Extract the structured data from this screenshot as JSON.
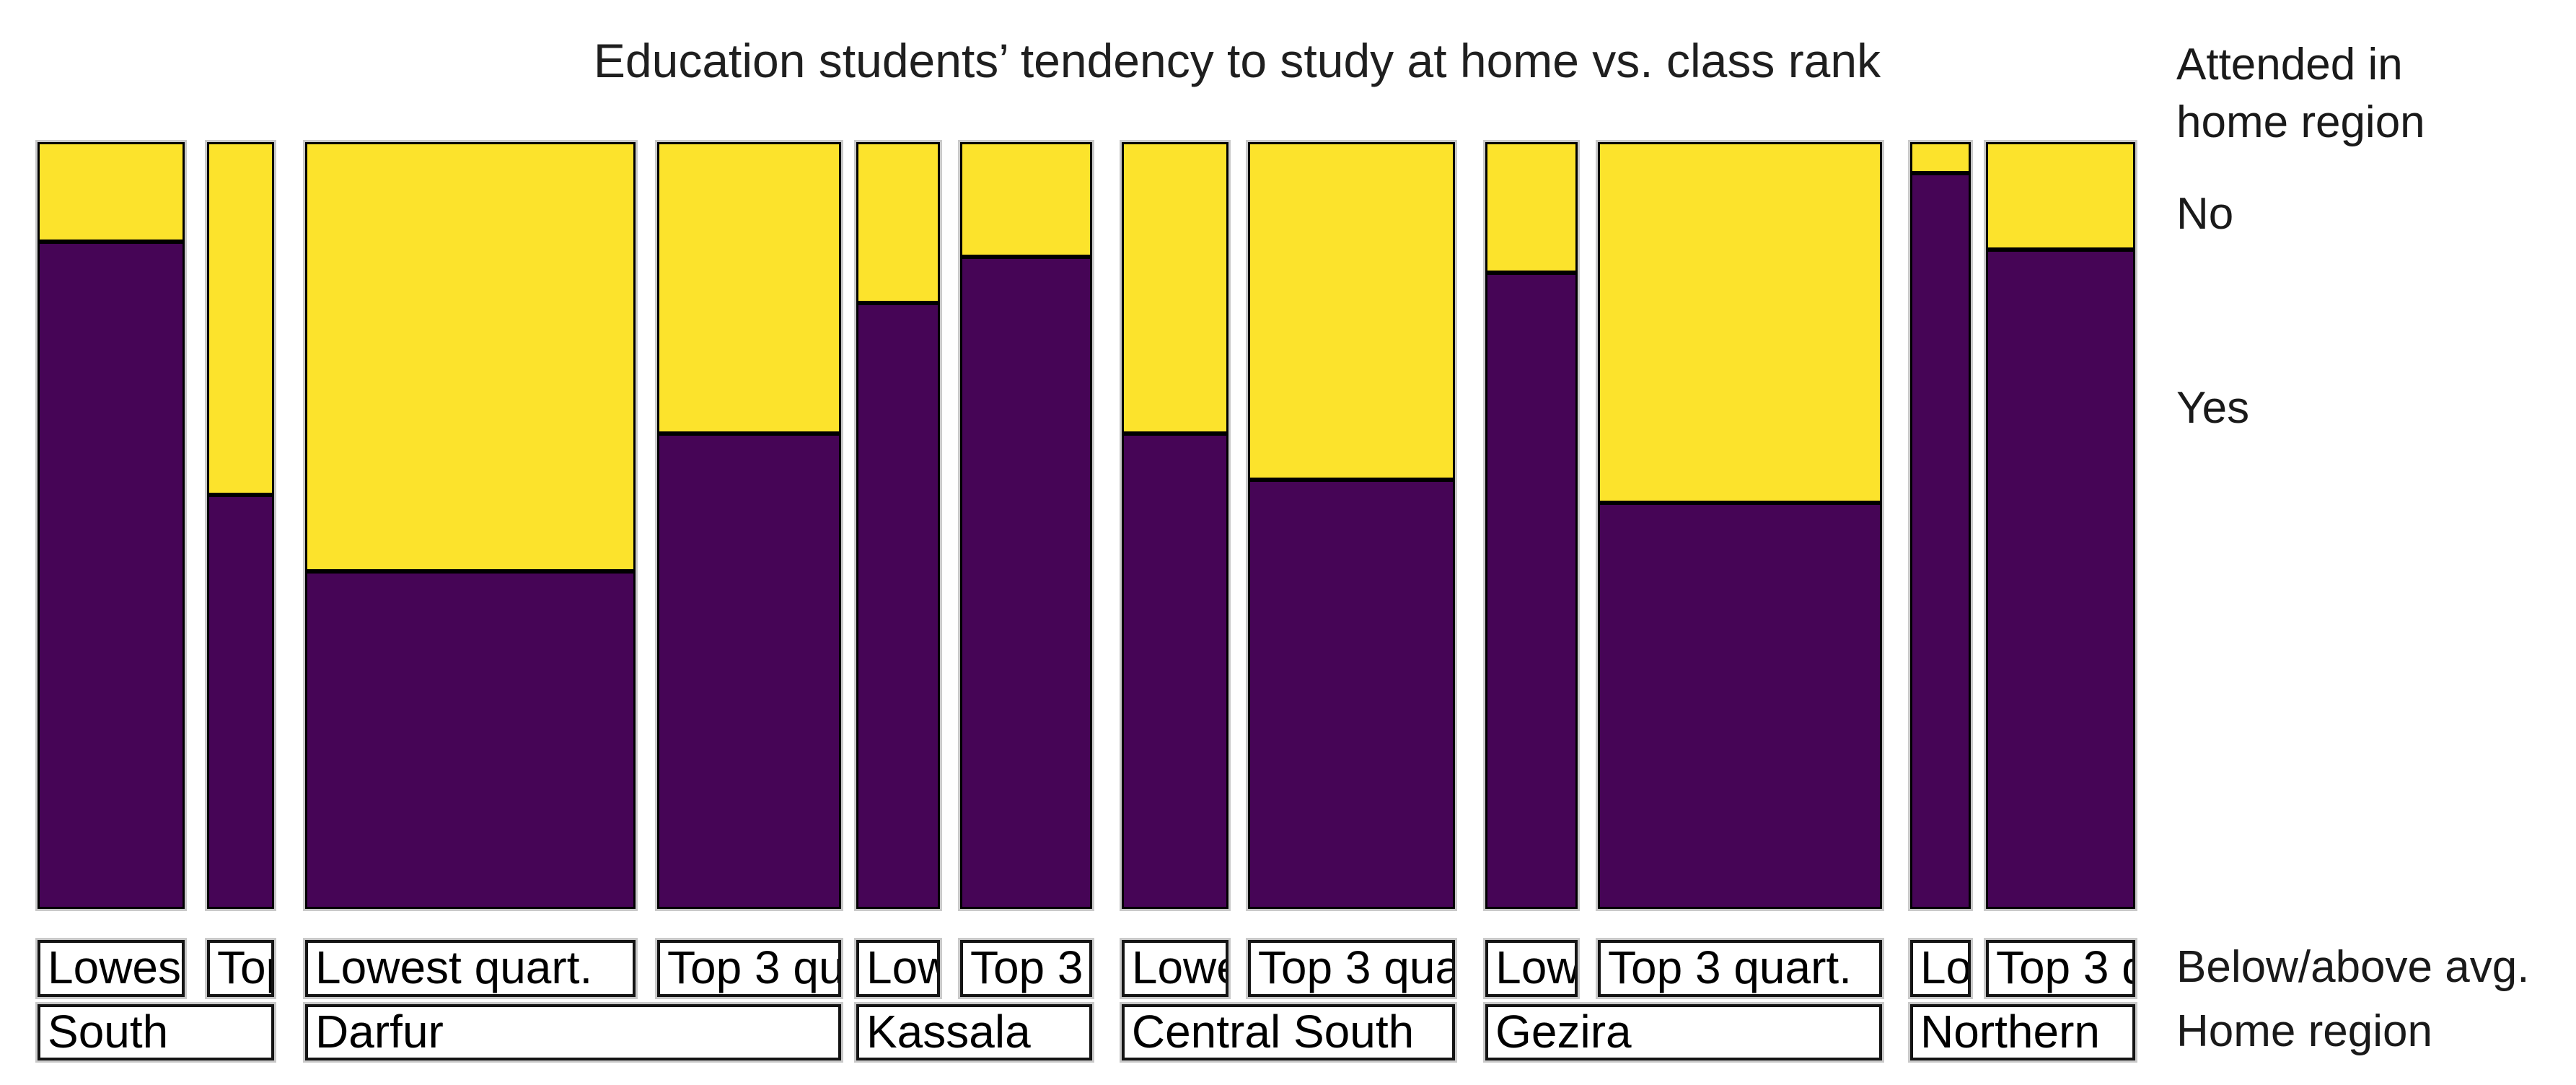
{
  "title": "Education students’ tendency to study at home vs. class rank",
  "legend": {
    "heading": "Attended in home region",
    "items": [
      "No",
      "Yes"
    ]
  },
  "axis_notes": {
    "rank_axis": "Below/above avg.",
    "region_axis": "Home region"
  },
  "colors": {
    "yes_purple": "#460556",
    "no_yellow": "#FCE32C",
    "outline": "#000000",
    "background": "#FFFFFF"
  },
  "chart_data": {
    "type": "mosaic",
    "title": "Education students’ tendency to study at home vs. class rank",
    "x_dimension": "Home region split by below/above average class rank (bar width proportional to group size)",
    "y_dimension": "Attended in home region",
    "y_categories": [
      "No",
      "Yes"
    ],
    "rank_categories": [
      "Lowest quart.",
      "Top 3 quart."
    ],
    "legend_note": "Yellow (top) = No, Purple (bottom) = Yes",
    "regions": [
      {
        "name": "South",
        "label_left_pct": 0.0,
        "label_width_pct": 11.28,
        "bars": [
          {
            "rank": "Lowest quart.",
            "left_pct": 0.0,
            "width_pct": 7.02,
            "no_pct": 13,
            "yes_pct": 87
          },
          {
            "rank": "Top 3 quart.",
            "left_pct": 8.08,
            "width_pct": 3.2,
            "no_pct": 46,
            "yes_pct": 54
          }
        ]
      },
      {
        "name": "Darfur",
        "label_left_pct": 12.76,
        "label_width_pct": 25.55,
        "bars": [
          {
            "rank": "Lowest quart.",
            "left_pct": 12.76,
            "width_pct": 15.75,
            "no_pct": 56,
            "yes_pct": 44
          },
          {
            "rank": "Top 3 quart.",
            "left_pct": 29.54,
            "width_pct": 8.77,
            "no_pct": 38,
            "yes_pct": 62
          }
        ]
      },
      {
        "name": "Kassala",
        "label_left_pct": 39.03,
        "label_width_pct": 11.24,
        "bars": [
          {
            "rank": "Lowest quart.",
            "left_pct": 39.03,
            "width_pct": 3.99,
            "no_pct": 21,
            "yes_pct": 79
          },
          {
            "rank": "Top 3 quart.",
            "left_pct": 43.98,
            "width_pct": 6.29,
            "no_pct": 15,
            "yes_pct": 85
          }
        ]
      },
      {
        "name": "Central South",
        "label_left_pct": 51.68,
        "label_width_pct": 15.89,
        "bars": [
          {
            "rank": "Lowest quart.",
            "left_pct": 51.68,
            "width_pct": 5.09,
            "no_pct": 38,
            "yes_pct": 62
          },
          {
            "rank": "Top 3 quart.",
            "left_pct": 57.7,
            "width_pct": 9.87,
            "no_pct": 44,
            "yes_pct": 56
          }
        ]
      },
      {
        "name": "Gezira",
        "label_left_pct": 69.02,
        "label_width_pct": 18.91,
        "bars": [
          {
            "rank": "Lowest quart.",
            "left_pct": 69.02,
            "width_pct": 4.4,
            "no_pct": 17,
            "yes_pct": 83
          },
          {
            "rank": "Top 3 quart.",
            "left_pct": 74.38,
            "width_pct": 13.55,
            "no_pct": 47,
            "yes_pct": 53
          }
        ]
      },
      {
        "name": "Northern",
        "label_left_pct": 89.27,
        "label_width_pct": 10.73,
        "bars": [
          {
            "rank": "Lowest quart.",
            "left_pct": 89.27,
            "width_pct": 2.89,
            "no_pct": 4,
            "yes_pct": 96
          },
          {
            "rank": "Top 3 quart.",
            "left_pct": 92.88,
            "width_pct": 7.12,
            "no_pct": 14,
            "yes_pct": 86
          }
        ]
      }
    ]
  }
}
